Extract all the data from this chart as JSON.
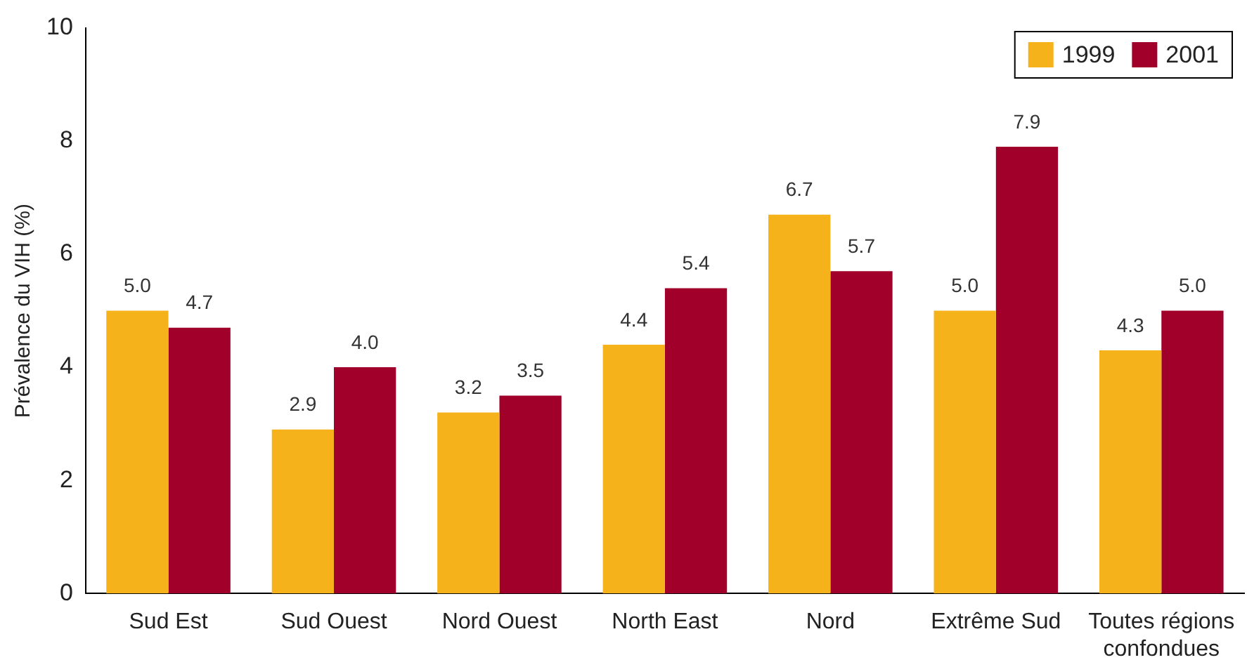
{
  "chart_data": {
    "type": "bar",
    "ylabel": "Prévalence du VIH (%)",
    "categories": [
      "Sud Est",
      "Sud Ouest",
      "Nord Ouest",
      "North East",
      "Nord",
      "Extrême Sud",
      "Toutes régions confondues"
    ],
    "series": [
      {
        "name": "1999",
        "color": "#f5b21b",
        "values": [
          5.0,
          2.9,
          3.2,
          4.4,
          6.7,
          5.0,
          4.3
        ],
        "value_labels": [
          "5.0",
          "2.9",
          "3.2",
          "4.4",
          "6.7",
          "5.0",
          "4.3"
        ]
      },
      {
        "name": "2001",
        "color": "#a0002a",
        "values": [
          4.7,
          4.0,
          3.5,
          5.4,
          5.7,
          7.9,
          5.0
        ],
        "value_labels": [
          "4.7",
          "4.0",
          "3.5",
          "5.4",
          "5.7",
          "7.9",
          "5.0"
        ]
      }
    ],
    "ylim": [
      0,
      10
    ],
    "yticks": [
      0,
      2,
      4,
      6,
      8,
      10
    ],
    "grid": false,
    "legend": "top right"
  }
}
